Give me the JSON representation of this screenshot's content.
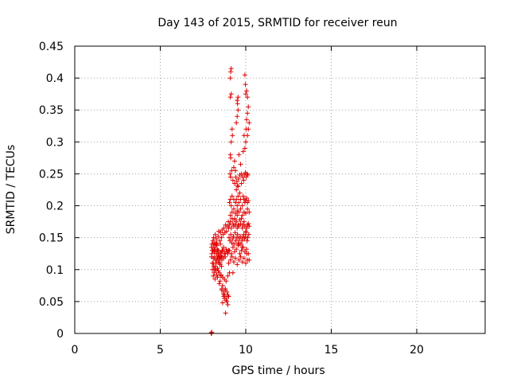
{
  "chart_data": {
    "type": "scatter",
    "title": "Day 143 of 2015, SRMTID for receiver reun",
    "xlabel": "GPS time / hours",
    "ylabel": "SRMTID / TECUs",
    "xlim": [
      0,
      24
    ],
    "ylim": [
      0,
      0.45
    ],
    "xticks": [
      "0",
      "5",
      "10",
      "15",
      "20"
    ],
    "yticks": [
      "0",
      "0.05",
      "0.1",
      "0.15",
      "0.2",
      "0.25",
      "0.3",
      "0.35",
      "0.4",
      "0.45"
    ],
    "grid": true,
    "marker": "+",
    "color": "#e00000",
    "x": [
      7.98,
      7.99,
      8.0,
      8.01,
      8.0,
      8.02,
      8.05,
      8.08,
      8.1,
      8.12,
      8.15,
      8.18,
      8.2,
      8.22,
      8.25,
      8.28,
      8.3,
      8.33,
      8.35,
      8.38,
      8.4,
      8.42,
      8.45,
      8.48,
      8.5,
      8.52,
      8.55,
      8.58,
      8.6,
      8.62,
      8.05,
      8.1,
      8.15,
      8.2,
      8.25,
      8.3,
      8.35,
      8.4,
      8.45,
      8.5,
      8.55,
      8.6,
      8.65,
      8.7,
      8.75,
      8.8,
      8.85,
      8.9,
      8.95,
      9.0,
      8.02,
      8.08,
      8.12,
      8.18,
      8.22,
      8.28,
      8.32,
      8.38,
      8.42,
      8.48,
      8.52,
      8.58,
      8.62,
      8.68,
      8.72,
      8.78,
      8.82,
      8.88,
      8.92,
      8.98,
      8.1,
      8.2,
      8.3,
      8.4,
      8.5,
      8.6,
      8.7,
      8.8,
      8.9,
      9.0,
      8.15,
      8.25,
      8.35,
      8.45,
      8.55,
      8.65,
      8.75,
      8.85,
      8.95,
      9.05,
      8.0,
      8.05,
      8.1,
      8.15,
      8.2,
      8.25,
      8.3,
      8.35,
      8.4,
      8.45,
      8.5,
      8.55,
      8.6,
      8.65,
      8.7,
      8.75,
      8.8,
      8.85,
      8.9,
      8.95,
      8.6,
      8.7,
      8.75,
      8.8,
      8.85,
      8.9,
      8.95,
      8.65,
      8.72,
      8.82,
      9.0,
      9.05,
      9.1,
      9.15,
      9.2,
      9.25,
      9.3,
      9.35,
      9.4,
      9.45,
      9.5,
      9.55,
      9.6,
      9.65,
      9.7,
      9.75,
      9.8,
      9.85,
      9.9,
      9.95,
      10.0,
      10.05,
      10.1,
      10.15,
      10.2,
      9.02,
      9.08,
      9.12,
      9.18,
      9.22,
      9.28,
      9.32,
      9.38,
      9.42,
      9.48,
      9.52,
      9.58,
      9.62,
      9.68,
      9.72,
      9.78,
      9.82,
      9.88,
      9.92,
      9.98,
      10.02,
      10.08,
      10.12,
      10.18,
      9.05,
      9.15,
      9.25,
      9.35,
      9.45,
      9.55,
      9.65,
      9.75,
      9.85,
      9.95,
      10.05,
      10.15,
      9.1,
      9.2,
      9.3,
      9.4,
      9.5,
      9.6,
      9.7,
      9.8,
      9.9,
      10.0,
      10.1,
      10.2,
      9.0,
      9.1,
      9.2,
      9.3,
      9.4,
      9.5,
      9.6,
      9.7,
      9.8,
      9.9,
      10.0,
      10.1,
      9.05,
      9.1,
      9.15,
      9.2,
      9.3,
      9.4,
      9.45,
      9.5,
      9.55,
      9.6,
      9.7,
      9.8,
      9.85,
      9.9,
      9.95,
      10.0,
      10.05,
      10.1,
      10.15,
      9.08,
      9.12,
      9.18,
      9.25,
      9.35,
      9.42,
      9.48,
      9.52,
      9.58,
      9.65,
      9.75,
      9.82,
      9.88,
      9.92,
      9.98,
      10.02,
      10.08,
      10.12,
      9.1,
      9.12,
      9.15,
      9.2,
      9.22,
      9.45,
      9.5,
      9.52,
      9.55,
      9.9,
      9.95,
      10.0,
      10.02,
      10.05,
      10.1,
      10.15,
      9.1,
      9.15,
      9.5,
      9.55,
      10.0,
      10.05,
      10.1,
      9.1,
      9.12,
      9.15,
      9.95,
      9.98,
      9.3,
      9.35,
      9.4,
      9.6,
      9.7,
      9.85,
      10.1,
      10.15,
      10.2,
      9.25,
      9.45,
      9.55,
      9.65,
      9.75,
      9.35,
      9.5,
      9.6,
      9.8,
      10.05,
      10.2
    ],
    "y": [
      0.0,
      0.001,
      0.0,
      0.002,
      0.12,
      0.125,
      0.11,
      0.13,
      0.118,
      0.105,
      0.135,
      0.12,
      0.128,
      0.115,
      0.14,
      0.11,
      0.125,
      0.132,
      0.118,
      0.122,
      0.13,
      0.115,
      0.12,
      0.11,
      0.127,
      0.14,
      0.12,
      0.105,
      0.115,
      0.13,
      0.1,
      0.09,
      0.095,
      0.085,
      0.1,
      0.092,
      0.088,
      0.098,
      0.078,
      0.082,
      0.09,
      0.07,
      0.075,
      0.065,
      0.06,
      0.068,
      0.055,
      0.05,
      0.045,
      0.058,
      0.14,
      0.145,
      0.15,
      0.142,
      0.155,
      0.148,
      0.138,
      0.152,
      0.16,
      0.145,
      0.158,
      0.15,
      0.162,
      0.155,
      0.165,
      0.158,
      0.17,
      0.16,
      0.168,
      0.175,
      0.11,
      0.105,
      0.115,
      0.112,
      0.108,
      0.12,
      0.118,
      0.125,
      0.128,
      0.13,
      0.1,
      0.098,
      0.102,
      0.095,
      0.092,
      0.088,
      0.085,
      0.082,
      0.09,
      0.095,
      0.135,
      0.13,
      0.14,
      0.128,
      0.132,
      0.138,
      0.142,
      0.13,
      0.125,
      0.12,
      0.118,
      0.122,
      0.128,
      0.13,
      0.135,
      0.125,
      0.12,
      0.132,
      0.128,
      0.125,
      0.068,
      0.062,
      0.055,
      0.07,
      0.052,
      0.065,
      0.06,
      0.048,
      0.058,
      0.032,
      0.165,
      0.17,
      0.175,
      0.165,
      0.18,
      0.172,
      0.168,
      0.178,
      0.17,
      0.175,
      0.165,
      0.17,
      0.168,
      0.178,
      0.172,
      0.18,
      0.165,
      0.17,
      0.175,
      0.168,
      0.16,
      0.165,
      0.17,
      0.172,
      0.168,
      0.15,
      0.145,
      0.155,
      0.142,
      0.148,
      0.152,
      0.14,
      0.158,
      0.145,
      0.15,
      0.155,
      0.142,
      0.148,
      0.152,
      0.14,
      0.145,
      0.15,
      0.155,
      0.148,
      0.152,
      0.158,
      0.145,
      0.15,
      0.155,
      0.13,
      0.125,
      0.135,
      0.128,
      0.132,
      0.138,
      0.125,
      0.13,
      0.135,
      0.128,
      0.132,
      0.125,
      0.185,
      0.19,
      0.195,
      0.188,
      0.192,
      0.19,
      0.195,
      0.185,
      0.19,
      0.188,
      0.195,
      0.19,
      0.11,
      0.115,
      0.12,
      0.112,
      0.118,
      0.108,
      0.115,
      0.12,
      0.112,
      0.118,
      0.11,
      0.115,
      0.205,
      0.21,
      0.2,
      0.215,
      0.21,
      0.205,
      0.21,
      0.2,
      0.215,
      0.205,
      0.21,
      0.2,
      0.215,
      0.21,
      0.205,
      0.208,
      0.212,
      0.205,
      0.208,
      0.25,
      0.245,
      0.255,
      0.24,
      0.235,
      0.245,
      0.238,
      0.232,
      0.242,
      0.248,
      0.25,
      0.245,
      0.24,
      0.248,
      0.252,
      0.245,
      0.25,
      0.248,
      0.28,
      0.275,
      0.3,
      0.32,
      0.31,
      0.33,
      0.34,
      0.36,
      0.35,
      0.31,
      0.29,
      0.3,
      0.32,
      0.335,
      0.345,
      0.355,
      0.37,
      0.375,
      0.365,
      0.37,
      0.375,
      0.38,
      0.37,
      0.4,
      0.41,
      0.415,
      0.405,
      0.39,
      0.26,
      0.27,
      0.255,
      0.28,
      0.265,
      0.285,
      0.31,
      0.32,
      0.33,
      0.095,
      0.225,
      0.23,
      0.22,
      0.235,
      0.18,
      0.185,
      0.14,
      0.135,
      0.125,
      0.115
    ]
  }
}
